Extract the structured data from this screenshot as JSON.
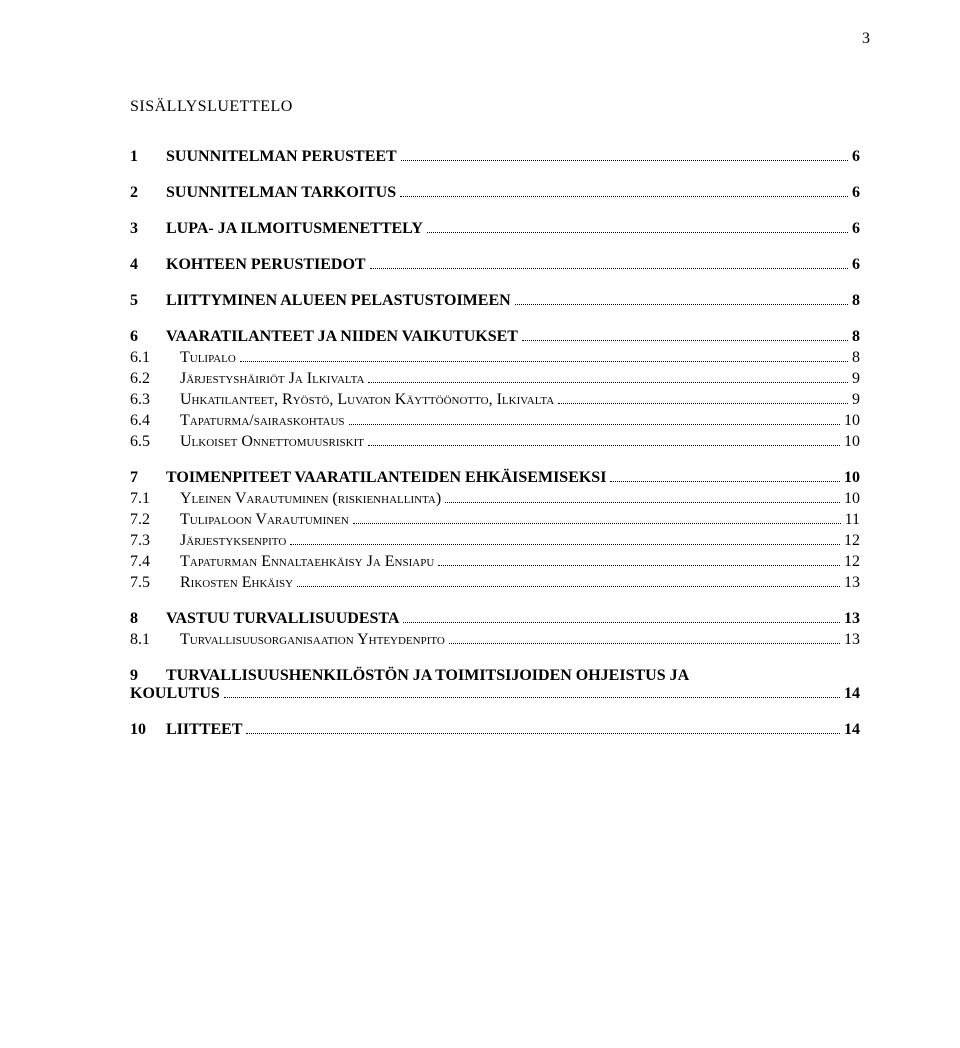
{
  "page_number": "3",
  "toc_title": "SISÄLLYSLUETTELO",
  "entries": [
    {
      "level": 1,
      "num": "1",
      "label": "SUUNNITELMAN PERUSTEET",
      "page": "6"
    },
    {
      "level": 1,
      "num": "2",
      "label": "SUUNNITELMAN TARKOITUS",
      "page": "6"
    },
    {
      "level": 1,
      "num": "3",
      "label": "LUPA- JA ILMOITUSMENETTELY",
      "page": "6"
    },
    {
      "level": 1,
      "num": "4",
      "label": "KOHTEEN PERUSTIEDOT",
      "page": "6"
    },
    {
      "level": 1,
      "num": "5",
      "label": "LIITTYMINEN ALUEEN PELASTUSTOIMEEN",
      "page": "8"
    },
    {
      "level": 1,
      "num": "6",
      "label": "VAARATILANTEET JA NIIDEN VAIKUTUKSET",
      "page": "8"
    },
    {
      "level": 2,
      "num": "6.1",
      "label_sc": "Tulipalo",
      "page": "8"
    },
    {
      "level": 2,
      "num": "6.2",
      "label_sc": "Järjestyshäiriöt ja ilkivalta",
      "page": "9"
    },
    {
      "level": 2,
      "num": "6.3",
      "label_sc": "Uhkatilanteet, ryöstö, luvaton käyttöönotto, ilkivalta",
      "page": "9"
    },
    {
      "level": 2,
      "num": "6.4",
      "label_sc": "Tapaturma/sairaskohtaus",
      "page": "10"
    },
    {
      "level": 2,
      "num": "6.5",
      "label_sc": "Ulkoiset onnettomuusriskit",
      "page": "10"
    },
    {
      "level": 1,
      "num": "7",
      "label": "TOIMENPITEET VAARATILANTEIDEN EHKÄISEMISEKSI",
      "page": "10"
    },
    {
      "level": 2,
      "num": "7.1",
      "label_sc": "Yleinen varautuminen (riskienhallinta)",
      "page": "10"
    },
    {
      "level": 2,
      "num": "7.2",
      "label_sc": "Tulipaloon varautuminen",
      "page": "11"
    },
    {
      "level": 2,
      "num": "7.3",
      "label_sc": "Järjestyksenpito",
      "page": "12"
    },
    {
      "level": 2,
      "num": "7.4",
      "label_sc": "Tapaturman ennaltaehkäisy ja ensiapu",
      "page": "12"
    },
    {
      "level": 2,
      "num": "7.5",
      "label_sc": "Rikosten ehkäisy",
      "page": "13"
    },
    {
      "level": 1,
      "num": "8",
      "label": "VASTUU TURVALLISUUDESTA",
      "page": "13"
    },
    {
      "level": 2,
      "num": "8.1",
      "label_sc": "Turvallisuusorganisaation yhteydenpito",
      "page": "13"
    }
  ],
  "multiline_entry": {
    "num": "9",
    "line1": "TURVALLISUUSHENKILÖSTÖN JA TOIMITSIJOIDEN OHJEISTUS JA",
    "line2": "KOULUTUS",
    "page": "14"
  },
  "last_entry": {
    "level": 1,
    "num": "10",
    "label": "LIITTEET",
    "page": "14"
  }
}
